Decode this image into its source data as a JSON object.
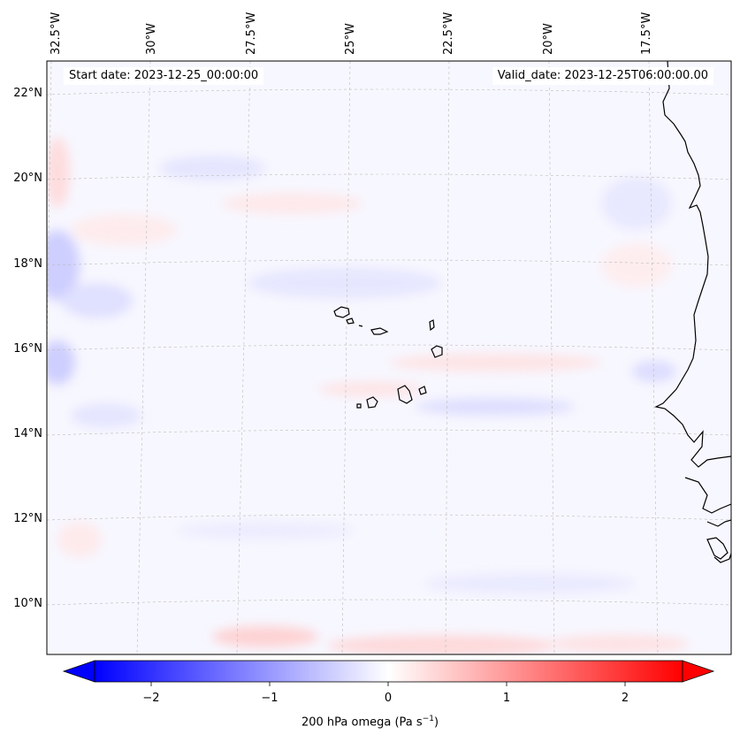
{
  "map": {
    "variable": "200 hPa omega",
    "units_prefix": "Pa s",
    "units_exponent": "−1",
    "start_label": "Start date: 2023-12-25_00:00:00",
    "valid_label": "Valid_date: 2023-12-25T06:00:00.00",
    "lon_labels": [
      "32.5°W",
      "30°W",
      "27.5°W",
      "25°W",
      "22.5°W",
      "20°W",
      "17.5°W"
    ],
    "lat_labels": [
      "22°N",
      "20°N",
      "18°N",
      "16°N",
      "14°N",
      "12°N",
      "10°N"
    ],
    "region": "Cape Verde Islands and West African coast"
  },
  "colorbar": {
    "ticks": [
      "−2",
      "−1",
      "0",
      "1",
      "2"
    ],
    "tick_values": [
      -2,
      -1,
      0,
      1,
      2
    ],
    "range": [
      -2.6,
      2.6
    ],
    "colormap": "bwr",
    "color_low": "#0000ff",
    "color_mid": "#ffffff",
    "color_high": "#ff0000"
  }
}
